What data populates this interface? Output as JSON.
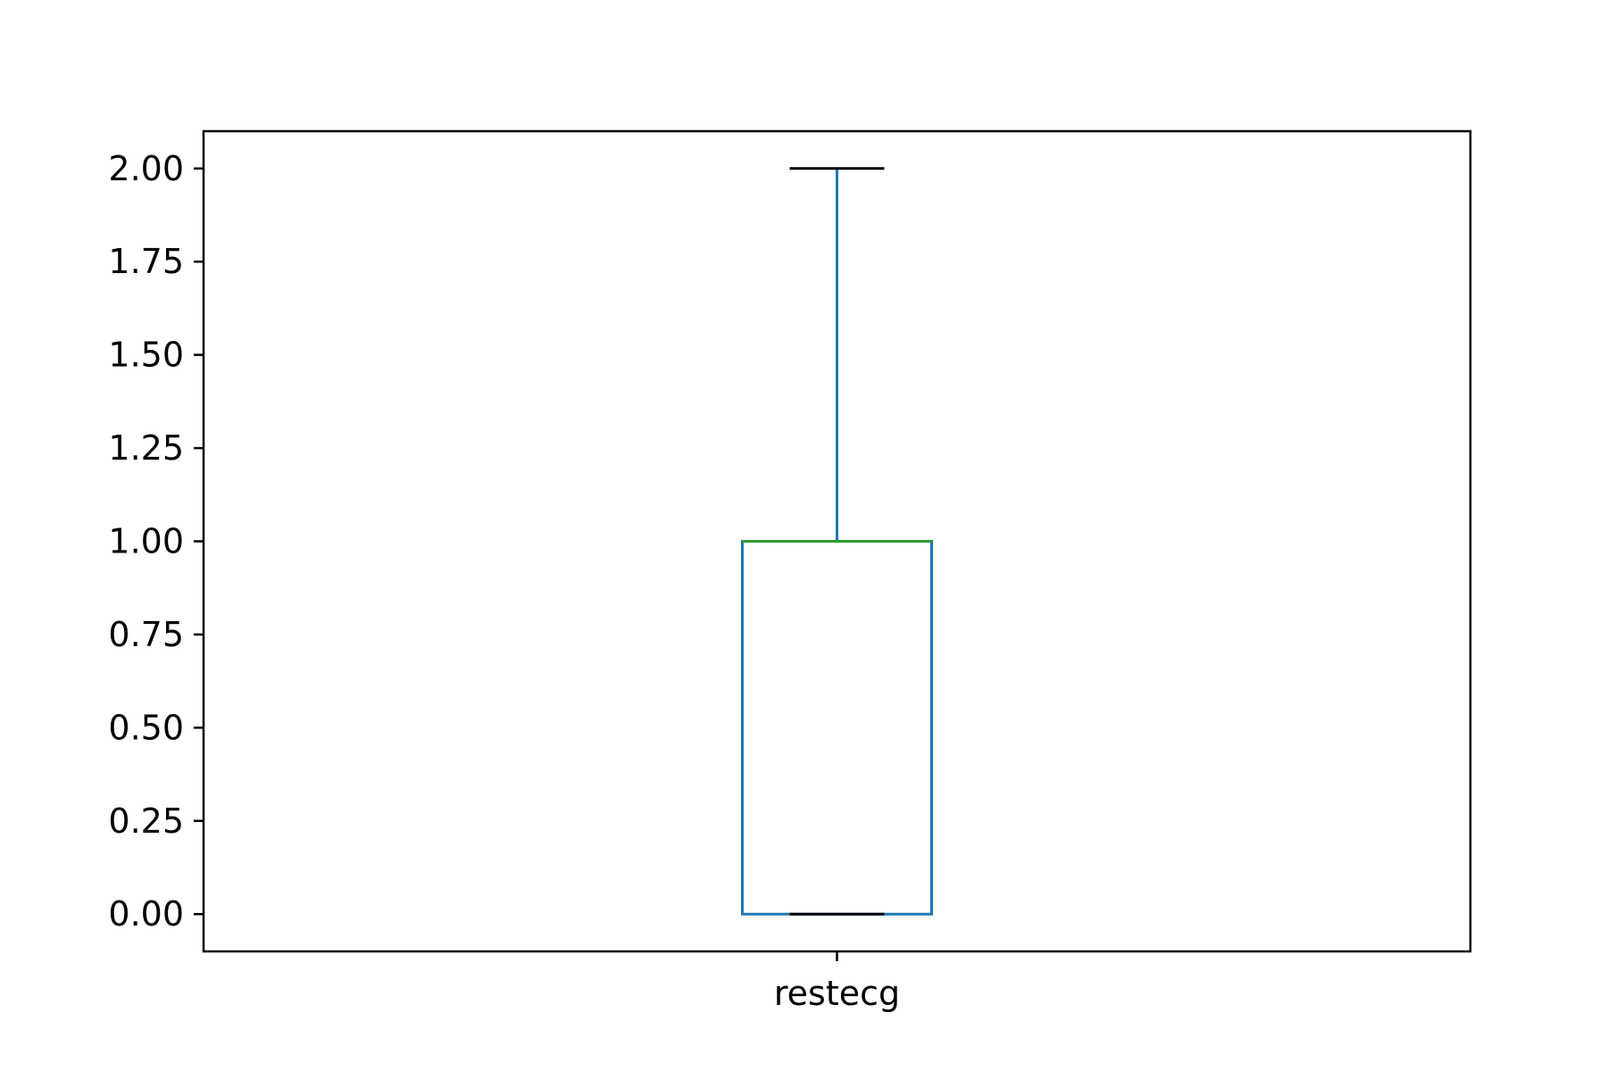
{
  "chart_data": {
    "type": "box",
    "title": "",
    "xlabel": "",
    "ylabel": "",
    "categories": [
      "restecg"
    ],
    "boxes": [
      {
        "label": "restecg",
        "whisker_low": 0.0,
        "q1": 0.0,
        "median": 1.0,
        "q3": 1.0,
        "whisker_high": 2.0
      }
    ],
    "ylim": [
      -0.1,
      2.1
    ],
    "yticks": [
      0.0,
      0.25,
      0.5,
      0.75,
      1.0,
      1.25,
      1.5,
      1.75,
      2.0
    ],
    "ytick_labels": [
      "0.00",
      "0.25",
      "0.50",
      "0.75",
      "1.00",
      "1.25",
      "1.50",
      "1.75",
      "2.00"
    ],
    "grid": false,
    "colors": {
      "box": "#1f77b4",
      "whisker": "#1f77b4",
      "cap": "#000000",
      "median": "#2ca02c",
      "axes": "#000000"
    }
  }
}
